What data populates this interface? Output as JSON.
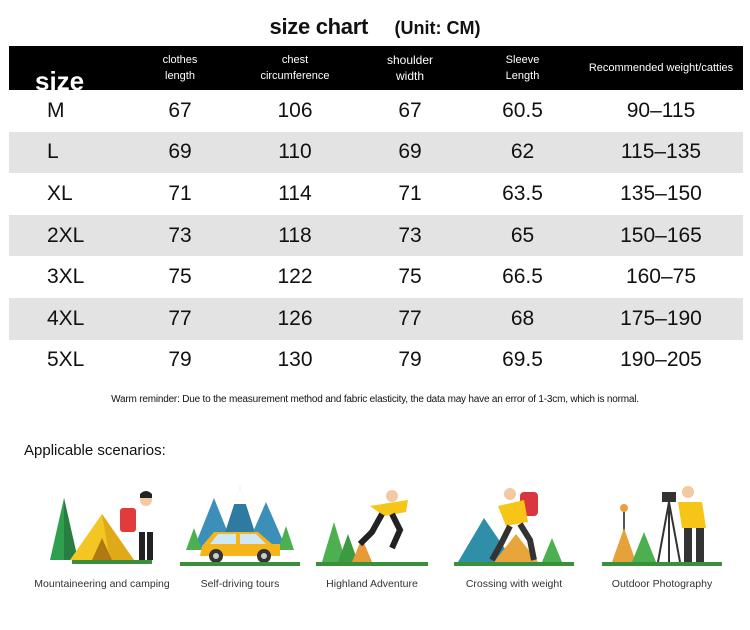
{
  "title": {
    "main": "size chart",
    "unit": "(Unit: CM)"
  },
  "table": {
    "headers": [
      [
        "size"
      ],
      [
        "clothes",
        "length"
      ],
      [
        "chest",
        "circumference"
      ],
      [
        "shoulder",
        "width"
      ],
      [
        "Sleeve",
        "Length"
      ],
      [
        "Recommended weight/catties"
      ]
    ],
    "rows": [
      [
        "M",
        "67",
        "106",
        "67",
        "60.5",
        "90–115"
      ],
      [
        "L",
        "69",
        "110",
        "69",
        "62",
        "115–135"
      ],
      [
        "XL",
        "71",
        "114",
        "71",
        "63.5",
        "135–150"
      ],
      [
        "2XL",
        "73",
        "118",
        "73",
        "65",
        "150–165"
      ],
      [
        "3XL",
        "75",
        "122",
        "75",
        "66.5",
        "160–75"
      ],
      [
        "4XL",
        "77",
        "126",
        "77",
        "68",
        "175–190"
      ],
      [
        "5XL",
        "79",
        "130",
        "79",
        "69.5",
        "190–205"
      ]
    ]
  },
  "reminder": "Warm reminder: Due to the measurement method and fabric elasticity, the data may have an error of 1-3cm, which is normal.",
  "scenarios_title": "Applicable scenarios:",
  "scenarios": [
    {
      "icon": "camping-tent-icon",
      "label": "Mountaineering and camping"
    },
    {
      "icon": "car-mountains-icon",
      "label": "Self-driving tours"
    },
    {
      "icon": "jumping-person-icon",
      "label": "Highland Adventure"
    },
    {
      "icon": "hiker-backpack-icon",
      "label": "Crossing with weight"
    },
    {
      "icon": "photographer-tripod-icon",
      "label": "Outdoor Photography"
    }
  ],
  "colors": {
    "header_bg": "#000000",
    "stripe": "#e3e3e3",
    "accent_yellow": "#f5c518",
    "tree_green": "#4caf50",
    "tent_blue": "#3fa9d6"
  }
}
